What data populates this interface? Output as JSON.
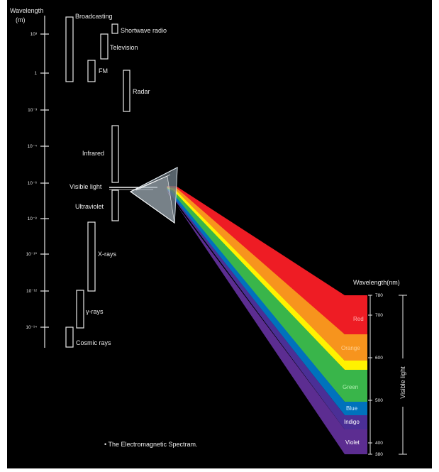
{
  "left_axis": {
    "title_line1": "Wavelength",
    "title_line2": "(m)",
    "ticks": [
      "10³",
      "1",
      "10⁻³",
      "10⁻⁴",
      "10⁻⁶",
      "10⁻⁸",
      "10⁻¹⁰",
      "10⁻¹²",
      "10⁻¹⁴"
    ]
  },
  "regions": [
    {
      "label": "Broadcasting"
    },
    {
      "label": "Shortwave radio"
    },
    {
      "label": "Television"
    },
    {
      "label": "FM"
    },
    {
      "label": "Radar"
    },
    {
      "label": "Infrared"
    },
    {
      "label": "Visible light"
    },
    {
      "label": "Ultraviolet"
    },
    {
      "label": "X-rays"
    },
    {
      "label": "γ-rays"
    },
    {
      "label": "Cosmic rays"
    }
  ],
  "spectrum_bands": [
    {
      "label": "Red",
      "color": "#ee1c24",
      "text_color": "#ffb0b0"
    },
    {
      "label": "Orange",
      "color": "#f7941d",
      "text_color": "#ffd090"
    },
    {
      "label": "",
      "color": "#fff200",
      "text_color": "#ffffff"
    },
    {
      "label": "Green",
      "color": "#39b54a",
      "text_color": "#b0f0b0"
    },
    {
      "label": "Blue",
      "color": "#0072bc",
      "text_color": "#d0e8ff"
    },
    {
      "label": "Indigo",
      "color": "#4b2f96",
      "text_color": "#ffffff"
    },
    {
      "label": "Violet",
      "color": "#5c2d91",
      "text_color": "#ffffff"
    }
  ],
  "right_axis": {
    "title": "Wavelength(nm)",
    "ticks": [
      "780",
      "700",
      "600",
      "500",
      "400",
      "380"
    ],
    "side_label": "Visible light"
  },
  "caption": "• The Electromagnetic Spectram.",
  "colors": {
    "background": "#000000",
    "foreground": "#e8e8e8"
  }
}
